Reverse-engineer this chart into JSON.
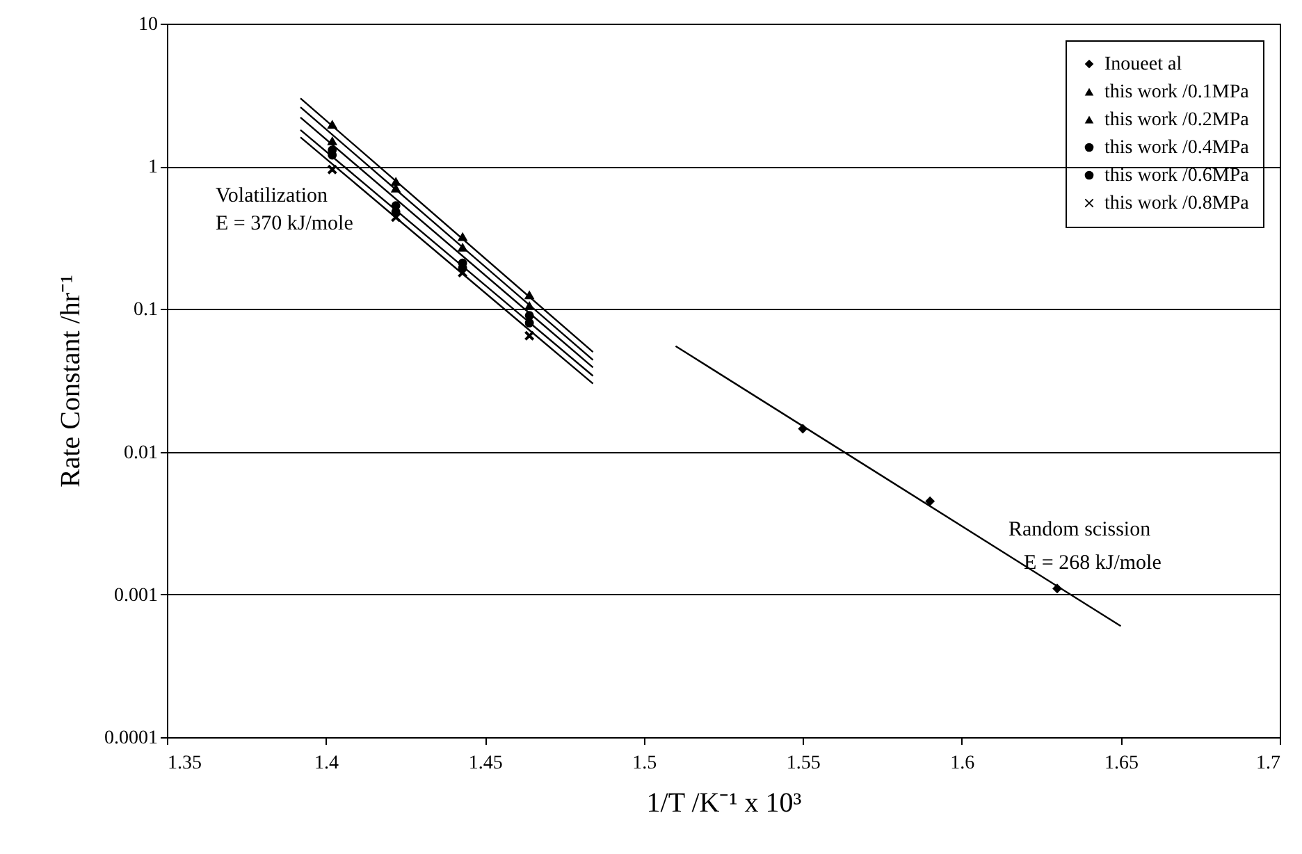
{
  "chart_data": {
    "type": "scatter",
    "xlabel": "1/T /K⁻¹ x 10³",
    "ylabel": "Rate Constant /hr⁻¹",
    "log": "y",
    "grid": "y",
    "legend": "top right",
    "xlim": [
      1.35,
      1.7
    ],
    "xticks": [
      1.35,
      1.4,
      1.45,
      1.5,
      1.55,
      1.6,
      1.65,
      1.7
    ],
    "ylim": [
      0.0001,
      10
    ],
    "yticks": [
      0.0001,
      0.001,
      0.01,
      0.1,
      1,
      10
    ],
    "annotations": [
      "Volatilization",
      "E = 370 kJ/mole",
      "Random scission",
      "E = 268 kJ/mole"
    ],
    "series": [
      {
        "name": "Inoueet al",
        "color": "#000000",
        "marker": "diamond",
        "x": [
          1.55,
          1.59,
          1.63
        ],
        "values": [
          0.0145,
          0.0045,
          0.0011
        ]
      },
      {
        "name": "this work /0.1MPa",
        "color": "#000000",
        "marker": "triangle",
        "x": [
          1.402,
          1.422,
          1.443,
          1.464
        ],
        "values": [
          1.96,
          0.78,
          0.32,
          0.125
        ]
      },
      {
        "name": "this work /0.2MPa",
        "color": "#000000",
        "marker": "triangle",
        "x": [
          1.402,
          1.422,
          1.443,
          1.464
        ],
        "values": [
          1.5,
          0.7,
          0.27,
          0.105
        ]
      },
      {
        "name": "this work /0.4MPa",
        "color": "#000000",
        "marker": "circle",
        "x": [
          1.402,
          1.422,
          1.443,
          1.464
        ],
        "values": [
          1.3,
          0.53,
          0.21,
          0.09
        ]
      },
      {
        "name": "this work /0.6MPa",
        "color": "#000000",
        "marker": "circle",
        "x": [
          1.402,
          1.422,
          1.443,
          1.464
        ],
        "values": [
          1.2,
          0.48,
          0.194,
          0.08
        ]
      },
      {
        "name": "this work /0.8MPa",
        "color": "#000000",
        "marker": "cross",
        "x": [
          1.402,
          1.422,
          1.443,
          1.464
        ],
        "values": [
          0.95,
          0.44,
          0.18,
          0.065
        ]
      },
      {
        "type": "line",
        "color": "#000000",
        "x": [
          1.392,
          1.484
        ],
        "values": [
          3.0,
          0.05
        ]
      },
      {
        "type": "line",
        "color": "#000000",
        "x": [
          1.392,
          1.484
        ],
        "values": [
          2.6,
          0.044
        ]
      },
      {
        "type": "line",
        "color": "#000000",
        "x": [
          1.392,
          1.484
        ],
        "values": [
          2.2,
          0.039
        ]
      },
      {
        "type": "line",
        "color": "#000000",
        "x": [
          1.392,
          1.484
        ],
        "values": [
          1.8,
          0.034
        ]
      },
      {
        "type": "line",
        "color": "#000000",
        "x": [
          1.392,
          1.484
        ],
        "values": [
          1.6,
          0.03
        ]
      },
      {
        "type": "line",
        "color": "#000000",
        "x": [
          1.51,
          1.65
        ],
        "values": [
          0.055,
          0.0006
        ]
      }
    ]
  }
}
